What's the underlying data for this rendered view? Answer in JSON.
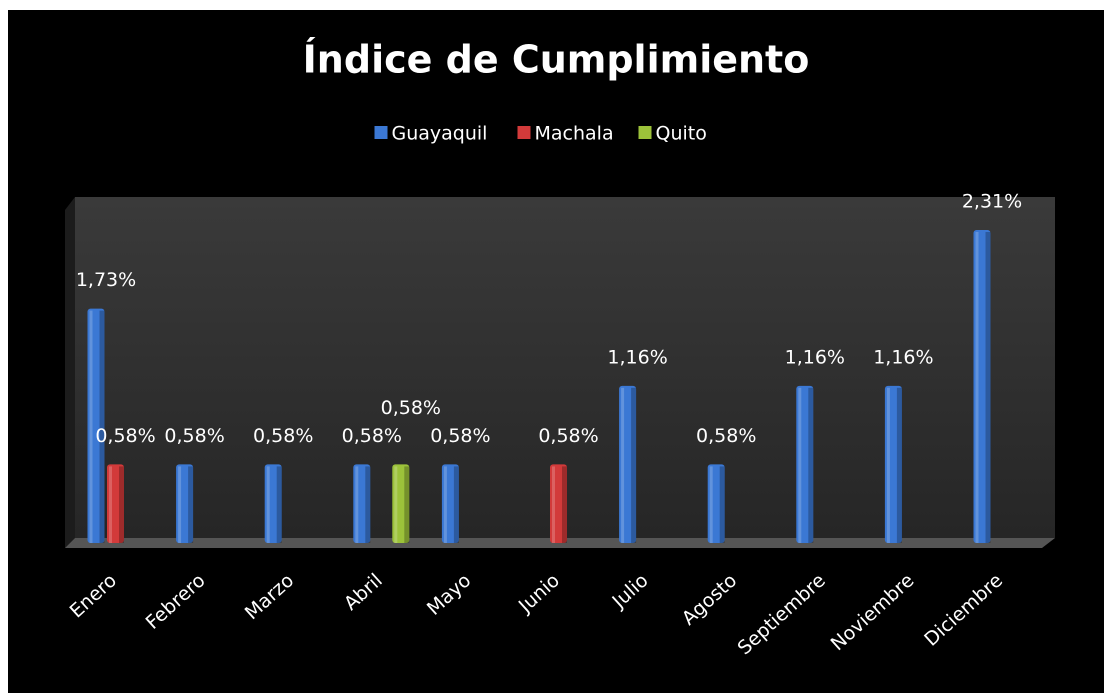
{
  "chart_data": {
    "type": "bar",
    "title": "Índice de Cumplimiento",
    "categories": [
      "Enero",
      "Febrero",
      "Marzo",
      "Abril",
      "Mayo",
      "Junio",
      "Julio",
      "Agosto",
      "Septiembre",
      "Noviembre",
      "Diciembre"
    ],
    "series": [
      {
        "name": "Guayaquil",
        "color": "#3b78d4",
        "values": [
          1.73,
          0.58,
          0.58,
          0.58,
          0.58,
          null,
          1.16,
          0.58,
          1.16,
          1.16,
          2.31
        ],
        "value_labels": [
          "1,73%",
          "0,58%",
          "0,58%",
          "0,58%",
          "0,58%",
          null,
          "1,16%",
          "0,58%",
          "1,16%",
          "1,16%",
          "2,31%"
        ]
      },
      {
        "name": "Machala",
        "color": "#d23a3a",
        "values": [
          0.58,
          null,
          null,
          null,
          null,
          0.58,
          null,
          null,
          null,
          null,
          null
        ],
        "value_labels": [
          "0,58%",
          null,
          null,
          null,
          null,
          "0,58%",
          null,
          null,
          null,
          null,
          null
        ]
      },
      {
        "name": "Quito",
        "color": "#9cc23a",
        "values": [
          null,
          null,
          null,
          0.58,
          null,
          null,
          null,
          null,
          null,
          null,
          null
        ],
        "value_labels": [
          null,
          null,
          null,
          "0,58%",
          null,
          null,
          null,
          null,
          null,
          null,
          null
        ]
      }
    ],
    "legend": "top"
  }
}
